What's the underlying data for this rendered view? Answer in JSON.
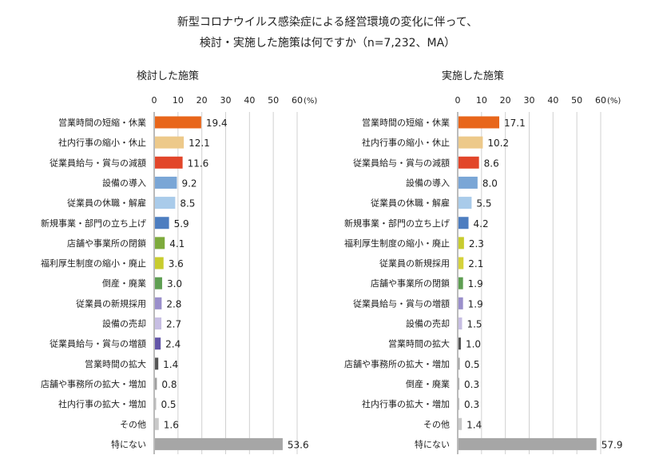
{
  "title_line1": "新型コロナウイルス感染症による経営環境の変化に伴って、",
  "title_line2": "検討・実施した施策は何ですか（n=7,232、MA）",
  "chart_data": [
    {
      "type": "bar",
      "orientation": "horizontal",
      "title": "検討した施策",
      "unit_label": "(%)",
      "xlim": [
        0,
        60
      ],
      "ticks": [
        0,
        10,
        20,
        30,
        40,
        50,
        60
      ],
      "grid": true,
      "categories": [
        "営業時間の短縮・休業",
        "社内行事の縮小・休止",
        "従業員給与・賞与の減額",
        "設備の導入",
        "従業員の休職・解雇",
        "新規事業・部門の立ち上げ",
        "店舗や事業所の閉鎖",
        "福利厚生制度の縮小・廃止",
        "倒産・廃業",
        "従業員の新規採用",
        "設備の売却",
        "従業員給与・賞与の増額",
        "営業時間の拡大",
        "店舗や事務所の拡大・増加",
        "社内行事の拡大・増加",
        "その他",
        "特にない"
      ],
      "values": [
        19.4,
        12.1,
        11.6,
        9.2,
        8.5,
        5.9,
        4.1,
        3.6,
        3.0,
        2.8,
        2.7,
        2.4,
        1.4,
        0.8,
        0.5,
        1.6,
        53.6
      ],
      "value_labels": [
        "19.4",
        "12.1",
        "11.6",
        "9.2",
        "8.5",
        "5.9",
        "4.1",
        "3.6",
        "3.0",
        "2.8",
        "2.7",
        "2.4",
        "1.4",
        "0.8",
        "0.5",
        "1.6",
        "53.6"
      ],
      "colors": [
        "#E8661B",
        "#EDC98A",
        "#E2462A",
        "#7AA6D6",
        "#A9CBEA",
        "#4C7DC0",
        "#7DAA3C",
        "#C8CC2E",
        "#5E9E52",
        "#9A8FCB",
        "#C7BEE3",
        "#6356A8",
        "#555555",
        "#9E9E9E",
        "#BDBDBD",
        "#C9C9C9",
        "#A6A6A6"
      ]
    },
    {
      "type": "bar",
      "orientation": "horizontal",
      "title": "実施した施策",
      "unit_label": "(%)",
      "xlim": [
        0,
        60
      ],
      "ticks": [
        0,
        10,
        20,
        30,
        40,
        50,
        60
      ],
      "grid": true,
      "categories": [
        "営業時間の短縮・休業",
        "社内行事の縮小・休止",
        "従業員給与・賞与の減額",
        "設備の導入",
        "従業員の休職・解雇",
        "新規事業・部門の立ち上げ",
        "福利厚生制度の縮小・廃止",
        "従業員の新規採用",
        "店舗や事業所の閉鎖",
        "従業員給与・賞与の増額",
        "設備の売却",
        "営業時間の拡大",
        "店舗や事務所の拡大・増加",
        "倒産・廃業",
        "社内行事の拡大・増加",
        "その他",
        "特にない"
      ],
      "values": [
        17.1,
        10.2,
        8.6,
        8.0,
        5.5,
        4.2,
        2.3,
        2.1,
        1.9,
        1.9,
        1.5,
        1.0,
        0.5,
        0.3,
        0.3,
        1.4,
        57.9
      ],
      "value_labels": [
        "17.1",
        "10.2",
        "8.6",
        "8.0",
        "5.5",
        "4.2",
        "2.3",
        "2.1",
        "1.9",
        "1.9",
        "1.5",
        "1.0",
        "0.5",
        "0.3",
        "0.3",
        "1.4",
        "57.9"
      ],
      "colors": [
        "#E8661B",
        "#EDC98A",
        "#E2462A",
        "#7AA6D6",
        "#A9CBEA",
        "#4C7DC0",
        "#C8CC2E",
        "#D5D23A",
        "#5E9E52",
        "#9A8FCB",
        "#C7BEE3",
        "#555555",
        "#9E9E9E",
        "#A8A8A8",
        "#BDBDBD",
        "#C9C9C9",
        "#A6A6A6"
      ]
    }
  ]
}
